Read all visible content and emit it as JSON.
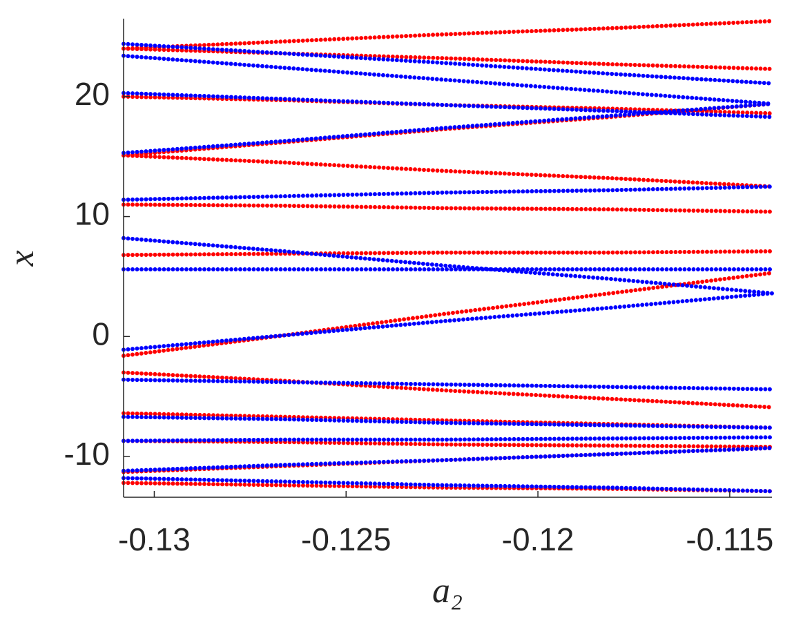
{
  "chart_data": {
    "type": "scatter",
    "x_label": "a₂",
    "y_label": "x",
    "x": [
      -0.1308,
      -0.1266,
      -0.1224,
      -0.1181,
      -0.1139
    ],
    "series": [
      {
        "color": "#ff0000",
        "values": [
          24.0,
          24.6,
          25.2,
          25.7,
          26.3
        ]
      },
      {
        "color": "#ff0000",
        "values": [
          24.0,
          23.6,
          23.2,
          22.7,
          22.3
        ]
      },
      {
        "color": "#ff0000",
        "values": [
          20.0,
          19.7,
          19.3,
          19.0,
          18.6
        ]
      },
      {
        "color": "#ff0000",
        "values": [
          15.1,
          16.2,
          17.3,
          18.3,
          19.4
        ]
      },
      {
        "color": "#ff0000",
        "values": [
          15.1,
          14.5,
          13.8,
          13.2,
          12.5
        ]
      },
      {
        "color": "#ff0000",
        "values": [
          11.0,
          10.9,
          10.7,
          10.6,
          10.4
        ]
      },
      {
        "color": "#ff0000",
        "values": [
          6.8,
          6.9,
          7.0,
          7.0,
          7.1
        ]
      },
      {
        "color": "#ff0000",
        "values": [
          -1.6,
          0.1,
          1.9,
          3.6,
          5.3
        ]
      },
      {
        "color": "#ff0000",
        "values": [
          -3.0,
          -3.7,
          -4.5,
          -5.2,
          -5.9
        ]
      },
      {
        "color": "#ff0000",
        "values": [
          -6.4,
          -6.7,
          -7.0,
          -7.3,
          -7.6
        ]
      },
      {
        "color": "#ff0000",
        "values": [
          -8.7,
          -8.8,
          -9.0,
          -9.1,
          -9.2
        ]
      },
      {
        "color": "#ff0000",
        "values": [
          -11.3,
          -10.8,
          -10.3,
          -9.8,
          -9.3
        ]
      },
      {
        "color": "#ff0000",
        "values": [
          -12.2,
          -12.4,
          -12.6,
          -12.7,
          -12.9
        ]
      },
      {
        "color": "#0000ff",
        "values": [
          24.4,
          23.6,
          22.8,
          21.9,
          21.1
        ]
      },
      {
        "color": "#0000ff",
        "values": [
          23.4,
          22.4,
          21.4,
          20.4,
          19.4
        ]
      },
      {
        "color": "#0000ff",
        "values": [
          20.3,
          19.8,
          19.3,
          18.8,
          18.3
        ]
      },
      {
        "color": "#0000ff",
        "values": [
          15.3,
          16.3,
          17.4,
          18.4,
          19.4
        ]
      },
      {
        "color": "#0000ff",
        "values": [
          11.4,
          11.7,
          12.0,
          12.2,
          12.5
        ]
      },
      {
        "color": "#0000ff",
        "values": [
          8.2,
          7.1,
          5.9,
          4.8,
          3.6
        ]
      },
      {
        "color": "#0000ff",
        "values": [
          5.6,
          5.6,
          5.6,
          5.6,
          5.6
        ]
      },
      {
        "color": "#0000ff",
        "values": [
          -1.1,
          0.1,
          1.3,
          2.4,
          3.6
        ]
      },
      {
        "color": "#0000ff",
        "values": [
          -3.6,
          -3.8,
          -4.0,
          -4.2,
          -4.4
        ]
      },
      {
        "color": "#0000ff",
        "values": [
          -6.7,
          -6.9,
          -7.2,
          -7.4,
          -7.6
        ]
      },
      {
        "color": "#0000ff",
        "values": [
          -8.7,
          -8.6,
          -8.6,
          -8.5,
          -8.4
        ]
      },
      {
        "color": "#0000ff",
        "values": [
          -11.2,
          -10.7,
          -10.3,
          -9.8,
          -9.3
        ]
      },
      {
        "color": "#0000ff",
        "values": [
          -11.8,
          -12.1,
          -12.4,
          -12.6,
          -12.9
        ]
      }
    ],
    "xlim": [
      -0.1308,
      -0.1139
    ],
    "xticks": [
      -0.13,
      -0.125,
      -0.12,
      -0.115
    ],
    "ylim": [
      -13.4,
      26.5
    ],
    "yticks": [
      -10,
      0,
      10,
      20
    ]
  }
}
